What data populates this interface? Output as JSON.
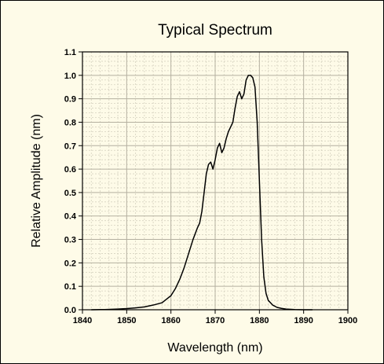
{
  "chart_data": {
    "type": "line",
    "title": "Typical Spectrum",
    "xlabel": "Wavelength (nm)",
    "ylabel": "Relative Amplitude (nm)",
    "xlim": [
      1840,
      1900
    ],
    "ylim": [
      0.0,
      1.1
    ],
    "x_ticks": [
      "1840",
      "1850",
      "1860",
      "1870",
      "1880",
      "1890",
      "1900"
    ],
    "y_ticks": [
      "0.0",
      "0.1",
      "0.2",
      "0.3",
      "0.4",
      "0.5",
      "0.6",
      "0.7",
      "0.8",
      "0.9",
      "1.0",
      "1.1"
    ],
    "grid": true,
    "colors": {
      "background": "#fefbe8",
      "grid_major": "#b4b0a0",
      "grid_minor": "#d6d2c0",
      "line": "#000000"
    },
    "series": [
      {
        "x": [
          1842,
          1845,
          1848,
          1850,
          1852,
          1854,
          1856,
          1858,
          1859,
          1860,
          1861,
          1862,
          1863,
          1864,
          1865,
          1866,
          1866.5,
          1867,
          1867.5,
          1868,
          1868.5,
          1869,
          1869.5,
          1870,
          1870.5,
          1871,
          1871.5,
          1872,
          1872.5,
          1873,
          1873.5,
          1874,
          1874.5,
          1875,
          1875.5,
          1876,
          1876.5,
          1877,
          1877.5,
          1878,
          1878.5,
          1879,
          1879.5,
          1880,
          1880.5,
          1881,
          1881.5,
          1882,
          1883,
          1884,
          1885,
          1886,
          1888,
          1890,
          1892
        ],
        "y": [
          0.0,
          0.001,
          0.003,
          0.005,
          0.008,
          0.012,
          0.02,
          0.03,
          0.045,
          0.06,
          0.09,
          0.13,
          0.18,
          0.24,
          0.3,
          0.35,
          0.37,
          0.42,
          0.5,
          0.58,
          0.62,
          0.63,
          0.6,
          0.64,
          0.69,
          0.71,
          0.67,
          0.69,
          0.73,
          0.76,
          0.78,
          0.8,
          0.86,
          0.91,
          0.93,
          0.9,
          0.92,
          0.98,
          1.0,
          1.0,
          0.99,
          0.95,
          0.8,
          0.55,
          0.3,
          0.14,
          0.07,
          0.04,
          0.02,
          0.01,
          0.006,
          0.003,
          0.001,
          0.0,
          0.0
        ]
      }
    ]
  }
}
